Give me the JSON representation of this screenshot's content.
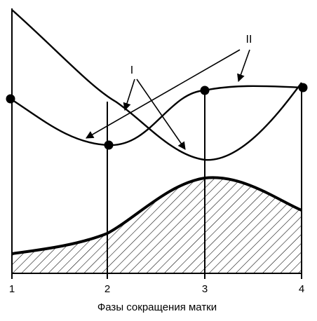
{
  "diagram": {
    "xlabel": "Фазы сокращения матки",
    "phases": [
      "1",
      "2",
      "3",
      "4"
    ],
    "callouts": {
      "curve_one": "I",
      "curve_two": "II"
    }
  }
}
